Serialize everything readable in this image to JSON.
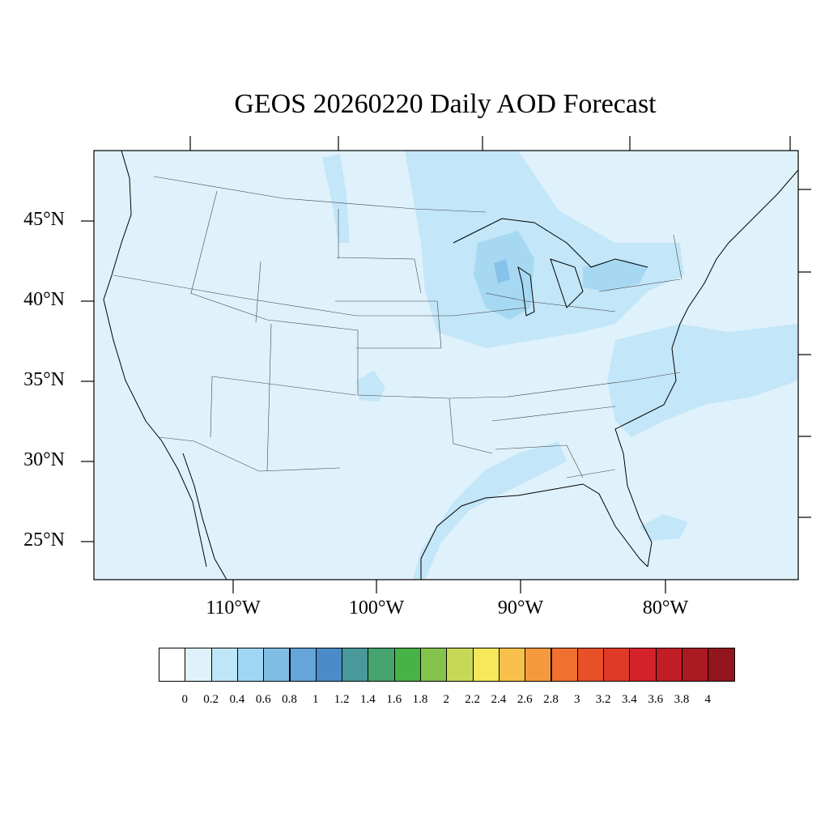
{
  "title": "GEOS 20260220 Daily AOD Forecast",
  "map": {
    "lat_labels": [
      "45°N",
      "40°N",
      "35°N",
      "30°N",
      "25°N"
    ],
    "lon_labels": [
      "110°W",
      "100°W",
      "90°W",
      "80°W"
    ],
    "background_color": "#dff2fb",
    "plume_color_light": "#c3e6f8",
    "plume_color_mid": "#a6d8f2",
    "plume_color_dark": "#86c2ea"
  },
  "colorbar": {
    "labels": [
      "0",
      "0.2",
      "0.4",
      "0.6",
      "0.8",
      "1",
      "1.2",
      "1.4",
      "1.6",
      "1.8",
      "2",
      "2.2",
      "2.4",
      "2.6",
      "2.8",
      "3",
      "3.2",
      "3.4",
      "3.6",
      "3.8",
      "4"
    ],
    "colors": [
      "#ffffff",
      "#dff2fb",
      "#bfe5f8",
      "#9fd6f3",
      "#7fbde5",
      "#64a5da",
      "#4a8cc9",
      "#4a999a",
      "#46a56e",
      "#47b347",
      "#84c44d",
      "#c6d858",
      "#f6e75b",
      "#f8c04a",
      "#f59a3c",
      "#f1702f",
      "#e85028",
      "#df3a28",
      "#d32229",
      "#c01d25",
      "#ab1a22",
      "#92161e"
    ]
  }
}
